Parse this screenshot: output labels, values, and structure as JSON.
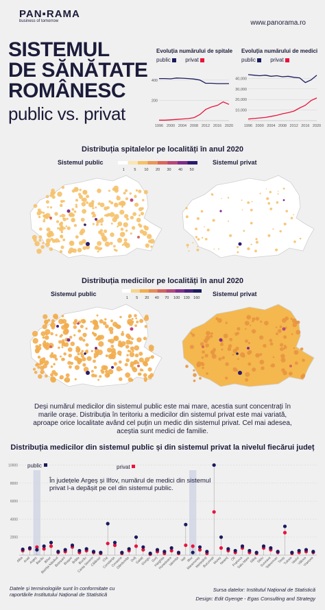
{
  "header": {
    "brand": "PAN▪RAMA",
    "tagline": "business of tomorrow",
    "site": "www.panorama.ro"
  },
  "title": {
    "line1": "SISTEMUL",
    "line2": "DE SĂNĂTATE",
    "line3": "ROMÂNESC",
    "line4": "public vs. privat"
  },
  "colors": {
    "navy": "#1b1b5e",
    "red": "#e8143c",
    "orange": "#f5b041",
    "band": "#d6d9e6"
  },
  "maps": {
    "hospitals_title": "Distribuția spitalelor pe localități în anul 2020",
    "doctors_title": "Distribuția medicilor pe localități în anul 2020",
    "public_label": "Sistemul public",
    "private_label": "Sistemul privat",
    "hospitals_scale": [
      "1",
      "5",
      "10",
      "20",
      "30",
      "40",
      "50"
    ],
    "doctors_scale": [
      "1",
      "5",
      "20",
      "40",
      "70",
      "100",
      "130",
      "160"
    ]
  },
  "paragraph": "Deși numărul medicilor din sistemul public este mai mare, acestia sunt concentrați în marile orașe. Distribuția în teritoriu a medicilor din sistemul privat este mai variată, aproape orice localitate având cel puțin un medic din sistemul privat. Cel mai adesea, aceștia sunt medici de familie.",
  "county_note": "În județele Argeș și Ilfov, numărul de medici din sistemul privat l-a depășit pe cel din sistemul public.",
  "footer": {
    "left1": "Datele și terminologiile sunt în conformitate cu",
    "left2": "raportările Institutului Național de Statistică",
    "right1": "Sursa datelor: Institutul Național de Statistică",
    "right2": "Design: Edit Gyenge - Egas Consulting and Strategy"
  },
  "chart_data": [
    {
      "type": "line",
      "title": "Evoluția numărului de spitale",
      "x": [
        1996,
        1998,
        2000,
        2002,
        2004,
        2006,
        2008,
        2010,
        2012,
        2014,
        2016,
        2018,
        2020
      ],
      "xticks": [
        "1996",
        "2000",
        "2004",
        "2008",
        "2012",
        "2016",
        "2020"
      ],
      "yticks": [
        "400",
        "200"
      ],
      "ylim": [
        0,
        500
      ],
      "legend": [
        "public",
        "privat"
      ],
      "series": [
        {
          "name": "public",
          "values": [
            415,
            415,
            412,
            420,
            418,
            415,
            410,
            400,
            368,
            368,
            365,
            365,
            365
          ]
        },
        {
          "name": "privat",
          "values": [
            5,
            5,
            8,
            12,
            16,
            20,
            30,
            60,
            110,
            135,
            150,
            185,
            160
          ]
        }
      ]
    },
    {
      "type": "line",
      "title": "Evoluția numărului de medici",
      "x": [
        1996,
        1998,
        2000,
        2002,
        2004,
        2006,
        2008,
        2010,
        2012,
        2014,
        2016,
        2018,
        2020
      ],
      "xticks": [
        "1996",
        "2000",
        "2004",
        "2008",
        "2012",
        "2016",
        "2020"
      ],
      "yticks": [
        "40,000",
        "30,000",
        "20,000",
        "10,000"
      ],
      "ylim": [
        0,
        48000
      ],
      "legend": [
        "public",
        "privat"
      ],
      "series": [
        {
          "name": "public",
          "values": [
            43500,
            43000,
            42500,
            43000,
            42000,
            42500,
            41500,
            42000,
            41000,
            40500,
            36000,
            38500,
            43000
          ]
        },
        {
          "name": "privat",
          "values": [
            1500,
            2000,
            2500,
            3000,
            4000,
            5000,
            6500,
            7500,
            9000,
            12000,
            14500,
            19000,
            21500
          ]
        }
      ]
    },
    {
      "type": "scatter",
      "title": "Distribuția medicilor din sistemul public și din sistemul privat la nivelul fiecărui județ",
      "legend": [
        "public",
        "privat"
      ],
      "yticks": [
        "10000",
        "8000",
        "6000",
        "4000",
        "2000"
      ],
      "ylim": [
        0,
        10500
      ],
      "highlight": [
        "Argeș",
        "Ilfov"
      ],
      "categories": [
        "Alba",
        "Arad",
        "Argeș",
        "Bacău",
        "Bihor",
        "Bistrița Năsăud",
        "Botoșani",
        "Brașov",
        "Brăila",
        "Buzău",
        "Caraș Severin",
        "Călărași",
        "Cluj",
        "Constanța",
        "Covasna",
        "Dâmbovița",
        "Dolj",
        "Galați",
        "Giurgiu",
        "Gorj",
        "Harghita",
        "Hunedoara",
        "Ialomița",
        "Iași",
        "Ilfov",
        "Maramureș",
        "Mehedinți",
        "București",
        "Mureș",
        "Neamț",
        "Olt",
        "Prahova",
        "Satu Mare",
        "Sălaj",
        "Sibiu",
        "Suceava",
        "Teleorman",
        "Timiș",
        "Tulcea",
        "Vaslui",
        "Vâlcea",
        "Vrancea"
      ],
      "series": [
        {
          "name": "public",
          "values": [
            650,
            800,
            600,
            1000,
            1400,
            400,
            600,
            1100,
            500,
            700,
            400,
            300,
            3500,
            1400,
            300,
            700,
            2000,
            900,
            200,
            600,
            400,
            800,
            300,
            3400,
            300,
            900,
            400,
            10000,
            2000,
            700,
            500,
            1000,
            500,
            300,
            1000,
            800,
            400,
            3200,
            300,
            500,
            600,
            400
          ]
        },
        {
          "name": "privat",
          "values": [
            500,
            700,
            900,
            700,
            1000,
            300,
            400,
            900,
            300,
            500,
            300,
            200,
            1300,
            1100,
            200,
            500,
            1000,
            600,
            100,
            400,
            200,
            500,
            200,
            1100,
            1000,
            600,
            200,
            4800,
            800,
            500,
            300,
            800,
            300,
            200,
            800,
            600,
            300,
            2500,
            200,
            300,
            400,
            300
          ]
        }
      ]
    }
  ]
}
